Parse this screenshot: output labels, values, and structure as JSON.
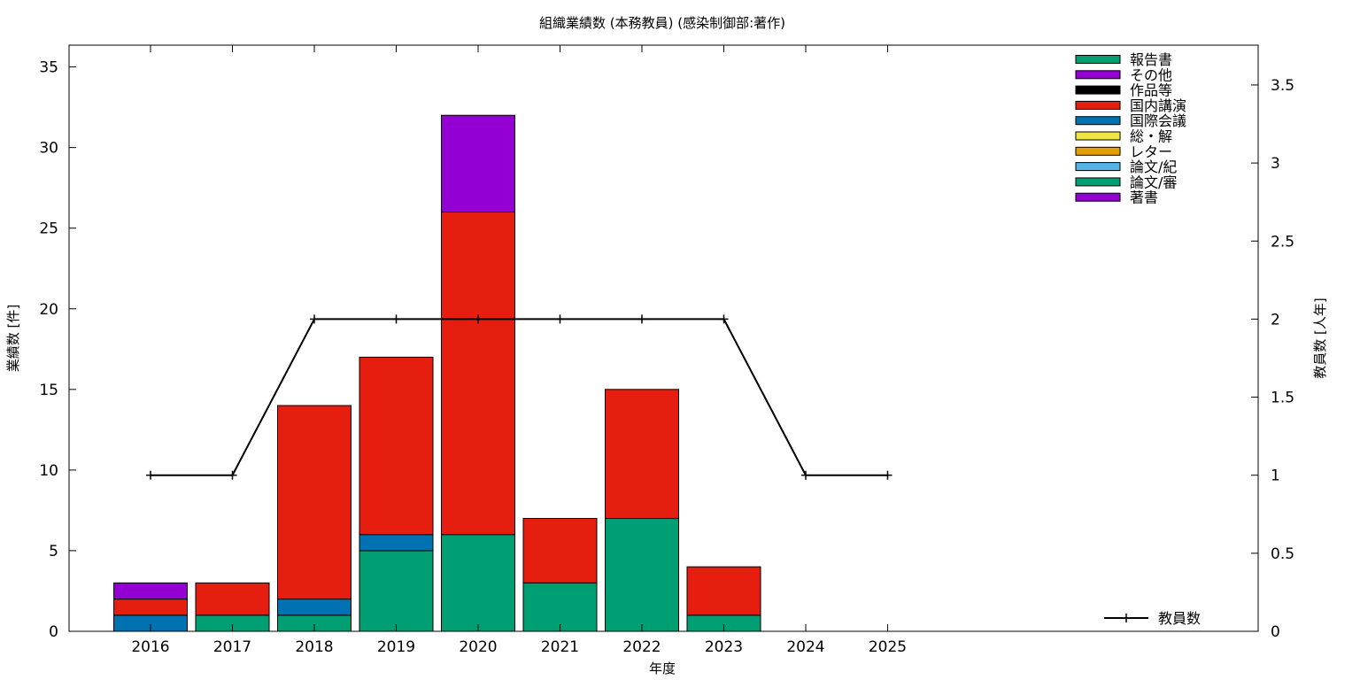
{
  "chart_data": {
    "type": "bar",
    "title": "組織業績数 (本務教員) (感染制御部:著作)",
    "xlabel": "年度",
    "ylabel": "業績数 [件]",
    "y2label": "教員数 [人年]",
    "categories": [
      "2016",
      "2017",
      "2018",
      "2019",
      "2020",
      "2021",
      "2022",
      "2023",
      "2024",
      "2025"
    ],
    "ylim": [
      0,
      36.35
    ],
    "y2lim": [
      0,
      3.755
    ],
    "yticks": [
      0,
      5,
      10,
      15,
      20,
      25,
      30,
      35
    ],
    "y2ticks": [
      0,
      0.5,
      1,
      1.5,
      2,
      2.5,
      3,
      3.5
    ],
    "stacked": true,
    "legend_position": "top-right",
    "series": [
      {
        "name": "論文/審",
        "color": "#009e73",
        "values": [
          0,
          1,
          1,
          5,
          6,
          3,
          7,
          1,
          0,
          0
        ]
      },
      {
        "name": "国際会議",
        "color": "#0072b2",
        "values": [
          1,
          0,
          1,
          1,
          0,
          0,
          0,
          0,
          0,
          0
        ]
      },
      {
        "name": "国内講演",
        "color": "#e51e10",
        "values": [
          1,
          2,
          12,
          11,
          20,
          4,
          8,
          3,
          0,
          0
        ]
      },
      {
        "name": "著書",
        "color": "#9400d3",
        "values": [
          1,
          0,
          0,
          0,
          6,
          0,
          0,
          0,
          0,
          0
        ]
      }
    ],
    "legend": [
      {
        "name": "報告書",
        "color": "#009e73"
      },
      {
        "name": "その他",
        "color": "#9400d3"
      },
      {
        "name": "作品等",
        "color": "#000000"
      },
      {
        "name": "国内講演",
        "color": "#e51e10"
      },
      {
        "name": "国際会議",
        "color": "#0072b2"
      },
      {
        "name": "総・解",
        "color": "#f0e442"
      },
      {
        "name": "レター",
        "color": "#e69f00"
      },
      {
        "name": "論文/紀",
        "color": "#56b4e9"
      },
      {
        "name": "論文/審",
        "color": "#009e73"
      },
      {
        "name": "著書",
        "color": "#9400d3"
      }
    ],
    "line_series": {
      "name": "教員数",
      "color": "#000000",
      "values": [
        1,
        1,
        2,
        2,
        2,
        2,
        2,
        2,
        1,
        1
      ]
    }
  }
}
